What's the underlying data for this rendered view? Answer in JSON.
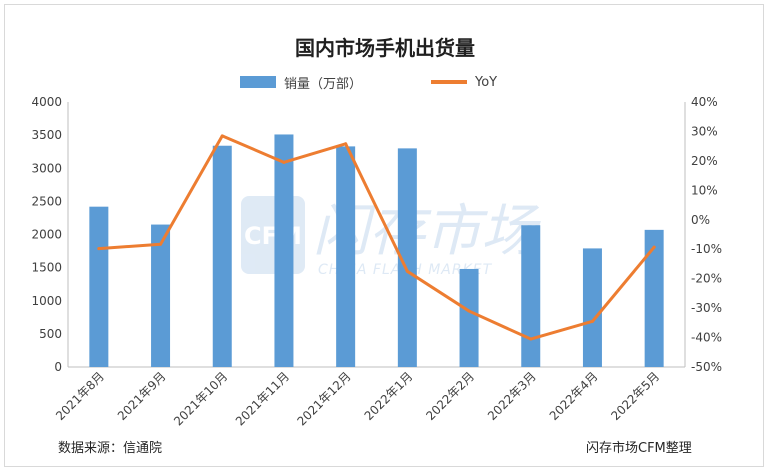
{
  "chart_data": {
    "type": "bar",
    "title": "国内市场手机出货量",
    "categories": [
      "2021年8月",
      "2021年9月",
      "2021年10月",
      "2021年11月",
      "2021年12月",
      "2022年1月",
      "2022年2月",
      "2022年3月",
      "2022年4月",
      "2022年5月"
    ],
    "series": [
      {
        "name": "销量（万部）",
        "type": "bar",
        "axis": "left",
        "color": "#5b9bd5",
        "values": [
          2420,
          2150,
          3340,
          3510,
          3330,
          3300,
          1480,
          2140,
          1790,
          2070
        ]
      },
      {
        "name": "YoY",
        "type": "line",
        "axis": "right",
        "color": "#ed7d31",
        "values": [
          -9.8,
          -8.3,
          28.5,
          19.5,
          25.8,
          -17.5,
          -31.0,
          -40.5,
          -34.5,
          -9.3
        ]
      }
    ],
    "y_left": {
      "min": 0,
      "max": 4000,
      "ticks": [
        "0",
        "500",
        "1000",
        "1500",
        "2000",
        "2500",
        "3000",
        "3500",
        "4000"
      ]
    },
    "y_right": {
      "min": -50,
      "max": 40,
      "ticks": [
        "-50%",
        "-40%",
        "-30%",
        "-20%",
        "-10%",
        "0%",
        "10%",
        "20%",
        "30%",
        "40%"
      ]
    },
    "grid": false,
    "legend_position": "top-center"
  },
  "watermark": {
    "logo": "CFM",
    "cn": "闪存市场",
    "en": "CHINA FLASH MARKET"
  },
  "footer": {
    "source": "数据来源：信通院",
    "credit": "闪存市场CFM整理"
  }
}
